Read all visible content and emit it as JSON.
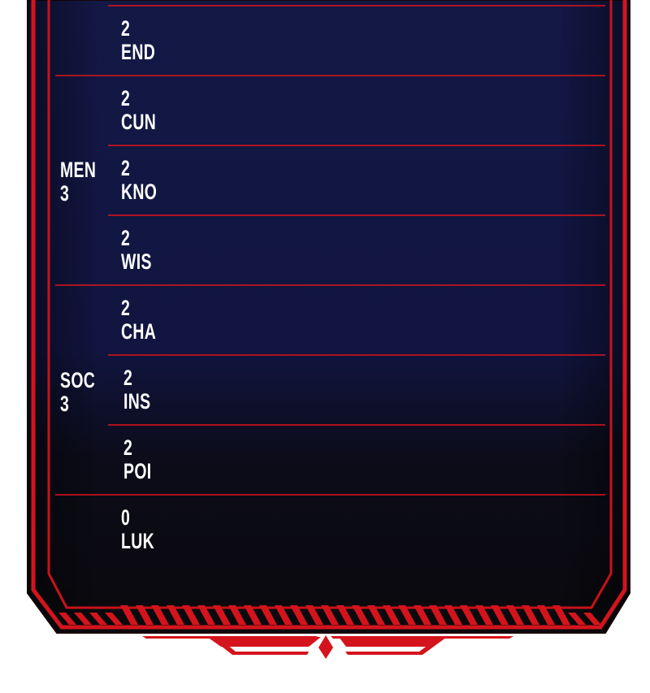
{
  "colors": {
    "frame_red": "#d4141c",
    "panel_navy": "#12163f",
    "panel_black": "#0b0a0e",
    "text": "#ffffff"
  },
  "groups": [
    {
      "name": "MEN",
      "value": "3"
    },
    {
      "name": "SOC",
      "value": "3"
    }
  ],
  "stats": [
    {
      "value": "2",
      "name": "END"
    },
    {
      "value": "2",
      "name": "CUN"
    },
    {
      "value": "2",
      "name": "KNO"
    },
    {
      "value": "2",
      "name": "WIS"
    },
    {
      "value": "2",
      "name": "CHA"
    },
    {
      "value": "2",
      "name": "INS"
    },
    {
      "value": "2",
      "name": "POI"
    },
    {
      "value": "0",
      "name": "LUK"
    }
  ]
}
